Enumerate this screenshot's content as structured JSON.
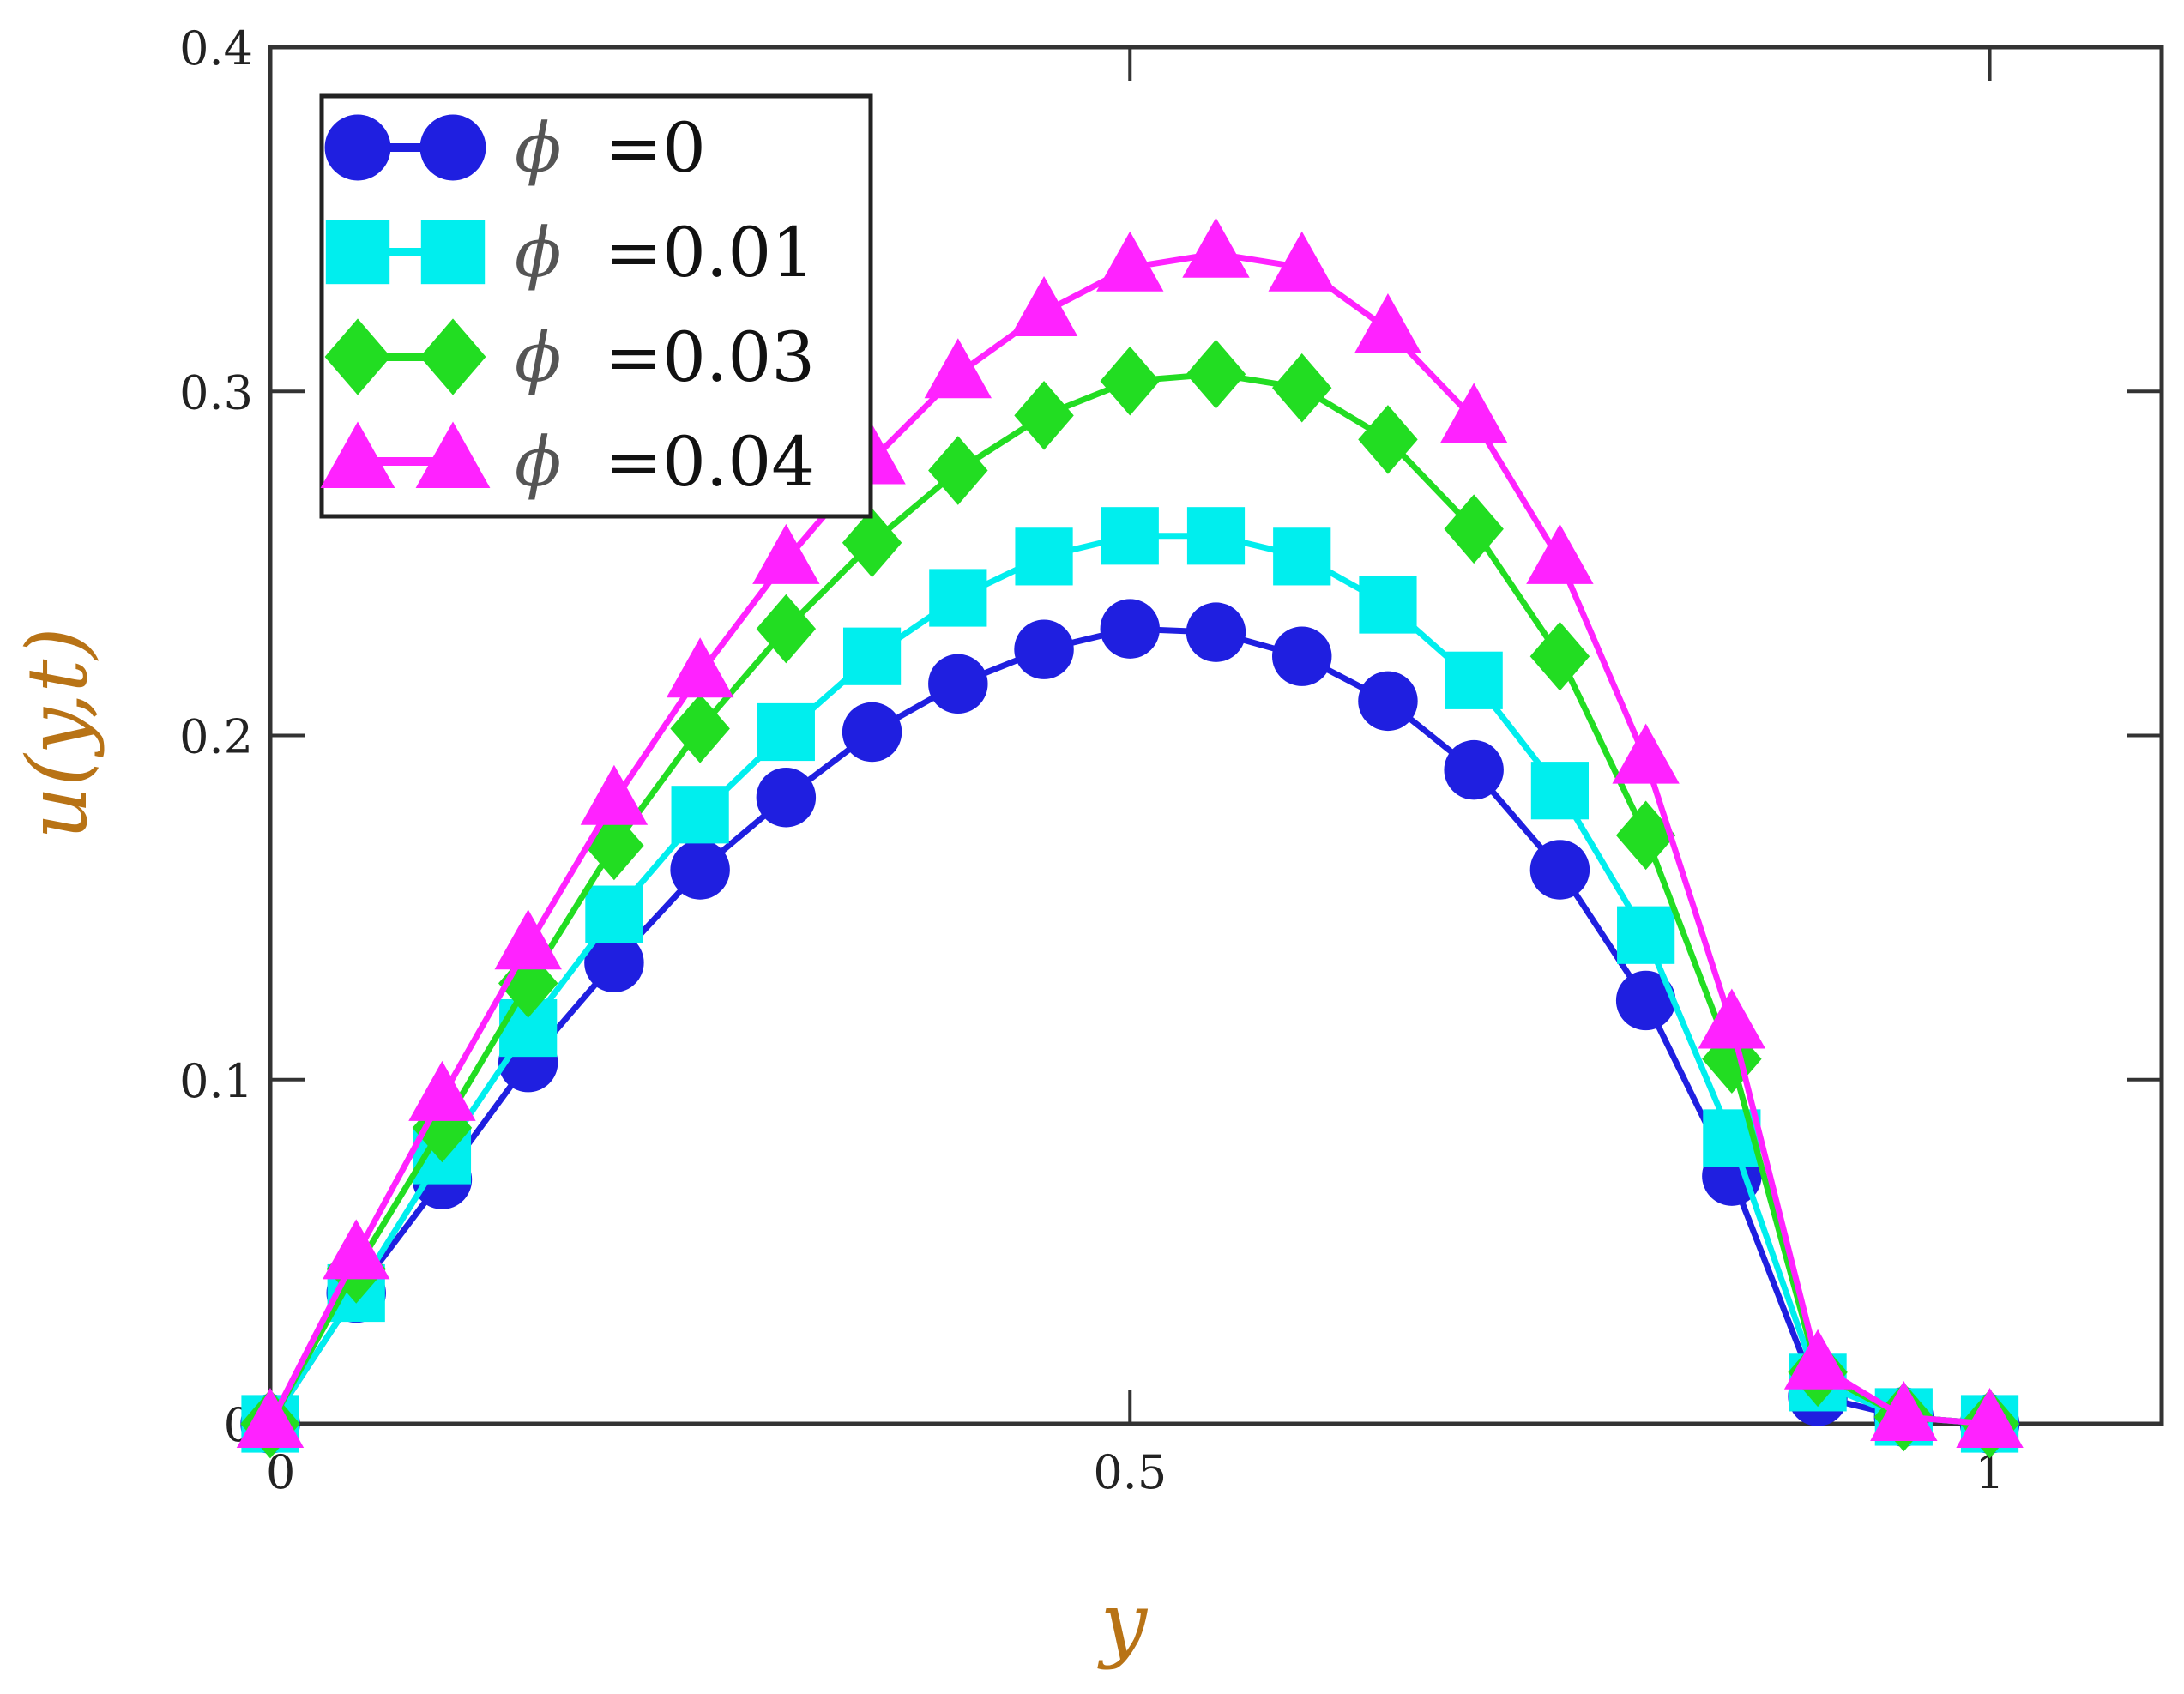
{
  "chart_data": {
    "type": "line",
    "title": "",
    "xlabel": "y",
    "ylabel": "u(y,t)",
    "xlim": [
      0,
      1.1
    ],
    "ylim": [
      0,
      0.4
    ],
    "xticks": [
      0,
      0.5,
      1
    ],
    "xtick_labels": [
      "0",
      "0.5",
      "1"
    ],
    "yticks": [
      0,
      0.1,
      0.2,
      0.3,
      0.4
    ],
    "ytick_labels": [
      "0",
      "0.1",
      "0.2",
      "0.3",
      "0.4"
    ],
    "grid": false,
    "legend_position": "top-left",
    "label_color": "#b87316",
    "axis_color": "#333333",
    "x": [
      0,
      0.05,
      0.1,
      0.15,
      0.2,
      0.25,
      0.3,
      0.35,
      0.4,
      0.45,
      0.5,
      0.55,
      0.6,
      0.65,
      0.7,
      0.75,
      0.8,
      0.85,
      0.9,
      0.95,
      1.0
    ],
    "series": [
      {
        "name": "ϕ =0",
        "symbol": "ϕ",
        "value_label": "=0",
        "color": "#1f1fe0",
        "marker": "circle",
        "values": [
          0,
          0.038,
          0.071,
          0.105,
          0.134,
          0.161,
          0.182,
          0.201,
          0.215,
          0.225,
          0.231,
          0.23,
          0.223,
          0.21,
          0.19,
          0.161,
          0.123,
          0.072,
          0.008,
          0.002,
          0
        ]
      },
      {
        "name": "ϕ =0.01",
        "symbol": "ϕ",
        "value_label": "=0.01",
        "color": "#00eeee",
        "marker": "square",
        "values": [
          0,
          0.038,
          0.078,
          0.115,
          0.148,
          0.177,
          0.201,
          0.223,
          0.24,
          0.252,
          0.258,
          0.258,
          0.252,
          0.238,
          0.216,
          0.184,
          0.142,
          0.083,
          0.012,
          0.002,
          0
        ]
      },
      {
        "name": "ϕ =0.03",
        "symbol": "ϕ",
        "value_label": "=0.03",
        "color": "#22dd22",
        "marker": "diamond",
        "values": [
          0,
          0.045,
          0.086,
          0.128,
          0.168,
          0.202,
          0.231,
          0.256,
          0.277,
          0.293,
          0.303,
          0.305,
          0.301,
          0.286,
          0.26,
          0.223,
          0.171,
          0.106,
          0.015,
          0.002,
          0
        ]
      },
      {
        "name": "ϕ =0.04",
        "symbol": "ϕ",
        "value_label": "=0.04",
        "color": "#ff22ff",
        "marker": "triangle",
        "values": [
          0,
          0.049,
          0.095,
          0.139,
          0.181,
          0.218,
          0.251,
          0.28,
          0.305,
          0.323,
          0.336,
          0.34,
          0.336,
          0.318,
          0.292,
          0.251,
          0.193,
          0.116,
          0.017,
          0.002,
          0
        ]
      }
    ]
  }
}
